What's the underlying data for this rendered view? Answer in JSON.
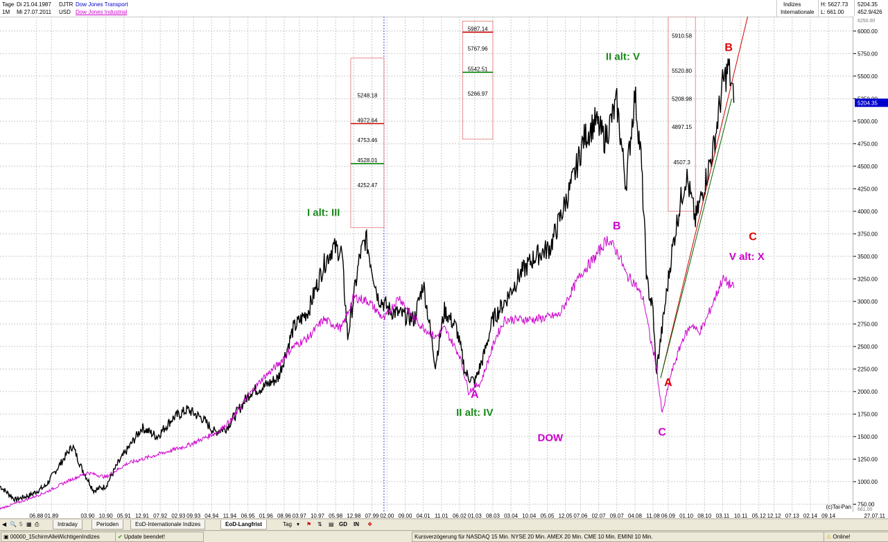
{
  "header": {
    "row1_mode": "Tage",
    "row1_date": "Di 21.04.1987",
    "row1_symbol": "DJTR",
    "row1_name": "Dow Jones Transport",
    "row2_mode": "1M",
    "row2_date": "Mi 27.07.2011",
    "row2_currency": "USD",
    "row2_name": "Dow Jones Industrial",
    "group1": "Indizes",
    "group2": "Internationale",
    "high": "H: 5627.73",
    "low": "L: 661.00",
    "last": "5204.35",
    "extra": "452.9/426"
  },
  "tabs": {
    "left_controls": [
      "5"
    ],
    "items": [
      {
        "label": "Intraday",
        "active": false
      },
      {
        "label": "Perioden",
        "active": false
      },
      {
        "label": "EoD-Internationale Indizes",
        "active": false
      },
      {
        "label": "EoD-Langfrist",
        "active": true
      }
    ],
    "tool_tag": "Tag",
    "tool_gd": "GD",
    "tool_in": "IN"
  },
  "status": {
    "workspace": "00000_15chirmAlleWichtigenIndizes",
    "update": "Update beendet!",
    "delay": "Kursverzögerung für NASDAQ 15 Min. NYSE 20 Min. AMEX 20 Min. CME 10 Min. EMINI 10 Min.",
    "online": "Online!"
  },
  "chart_data": {
    "type": "line",
    "title": "",
    "xlabel": "",
    "ylabel": "",
    "ylim": [
      661,
      6160
    ],
    "y_ticks": [
      750,
      1000,
      1250,
      1500,
      1750,
      2000,
      2250,
      2500,
      2750,
      3000,
      3250,
      3500,
      3750,
      4000,
      4250,
      4500,
      4750,
      5000,
      5250,
      5500,
      5750,
      6000
    ],
    "y_tick_labels": [
      "750.00",
      "1000.00",
      "1250.00",
      "1500.00",
      "1750.00",
      "2000.00",
      "2250.00",
      "2500.00",
      "2750.00",
      "3000.00",
      "3250.00",
      "3500.00",
      "3750.00",
      "4000.00",
      "4250.00",
      "4500.00",
      "4750.00",
      "5000.00",
      "5250.00",
      "5500.00",
      "5750.00",
      "6000.00"
    ],
    "y_top_label": "6250.00",
    "y_bottom_label": "661.00",
    "last_value": 5204.35,
    "last_label": "5204.35",
    "x_range": [
      1987.3,
      2015.5
    ],
    "x_ticks": [
      {
        "x": 1988.5,
        "label": "06.88"
      },
      {
        "x": 1989.0,
        "label": "01.89"
      },
      {
        "x": 1990.2,
        "label": "03.90"
      },
      {
        "x": 1990.8,
        "label": "10.90"
      },
      {
        "x": 1991.4,
        "label": "05.91"
      },
      {
        "x": 1992.0,
        "label": "12.91"
      },
      {
        "x": 1992.6,
        "label": "07.92"
      },
      {
        "x": 1993.2,
        "label": "02.93"
      },
      {
        "x": 1993.7,
        "label": "09.93"
      },
      {
        "x": 1994.3,
        "label": "04.94"
      },
      {
        "x": 1994.9,
        "label": "11.94"
      },
      {
        "x": 1995.5,
        "label": "06.95"
      },
      {
        "x": 1996.1,
        "label": "01.96"
      },
      {
        "x": 1996.7,
        "label": "08.96"
      },
      {
        "x": 1997.2,
        "label": "03.97"
      },
      {
        "x": 1997.8,
        "label": "10.97"
      },
      {
        "x": 1998.4,
        "label": "05.98"
      },
      {
        "x": 1999.0,
        "label": "12.98"
      },
      {
        "x": 1999.6,
        "label": "07.99"
      },
      {
        "x": 2000.1,
        "label": "02.00"
      },
      {
        "x": 2000.7,
        "label": "09.00"
      },
      {
        "x": 2001.3,
        "label": "04.01"
      },
      {
        "x": 2001.9,
        "label": "11.01"
      },
      {
        "x": 2002.5,
        "label": "06.02"
      },
      {
        "x": 2003.0,
        "label": "01.03"
      },
      {
        "x": 2003.6,
        "label": "08.03"
      },
      {
        "x": 2004.2,
        "label": "03.04"
      },
      {
        "x": 2004.8,
        "label": "10.04"
      },
      {
        "x": 2005.4,
        "label": "05.05"
      },
      {
        "x": 2006.0,
        "label": "12.05"
      },
      {
        "x": 2006.5,
        "label": "07.06"
      },
      {
        "x": 2007.1,
        "label": "02.07"
      },
      {
        "x": 2007.7,
        "label": "09.07"
      },
      {
        "x": 2008.3,
        "label": "04.08"
      },
      {
        "x": 2008.9,
        "label": "11.08"
      },
      {
        "x": 2009.4,
        "label": "06.09"
      },
      {
        "x": 2010.0,
        "label": "01.10"
      },
      {
        "x": 2010.6,
        "label": "08.10"
      },
      {
        "x": 2011.2,
        "label": "03.11"
      },
      {
        "x": 2011.8,
        "label": "10.11"
      },
      {
        "x": 2012.4,
        "label": "05.12"
      },
      {
        "x": 2012.9,
        "label": "12.12"
      },
      {
        "x": 2013.5,
        "label": "07.13"
      },
      {
        "x": 2014.1,
        "label": "02.14"
      },
      {
        "x": 2014.7,
        "label": "09.14"
      }
    ],
    "x_end_label": "27.07.11",
    "vline_x": 2000.0,
    "series": [
      {
        "name": "Dow Jones Transport",
        "color": "#000000",
        "x": [
          1987.3,
          1987.8,
          1988.3,
          1988.8,
          1989.3,
          1989.7,
          1990.0,
          1990.4,
          1990.8,
          1991.2,
          1991.6,
          1992.0,
          1992.5,
          1993.0,
          1993.5,
          1994.0,
          1994.4,
          1994.8,
          1995.2,
          1995.6,
          1996.0,
          1996.5,
          1997.0,
          1997.5,
          1998.0,
          1998.3,
          1998.6,
          1998.8,
          1999.2,
          1999.4,
          1999.8,
          2000.2,
          2000.6,
          2001.0,
          2001.3,
          2001.7,
          2002.0,
          2002.4,
          2002.7,
          2003.0,
          2003.3,
          2003.6,
          2004.0,
          2004.5,
          2005.0,
          2005.5,
          2006.0,
          2006.3,
          2006.6,
          2007.0,
          2007.3,
          2007.7,
          2008.0,
          2008.3,
          2008.5,
          2008.7,
          2008.9,
          2009.0,
          2009.2,
          2009.5,
          2009.8,
          2010.0,
          2010.3,
          2010.6,
          2010.9,
          2011.2,
          2011.4,
          2011.57
        ],
        "y": [
          950,
          800,
          850,
          950,
          1200,
          1400,
          1150,
          900,
          950,
          1200,
          1400,
          1600,
          1500,
          1700,
          1800,
          1700,
          1550,
          1600,
          1800,
          2000,
          2050,
          2150,
          2700,
          2900,
          3400,
          3600,
          3550,
          2600,
          3500,
          3700,
          3050,
          2900,
          2850,
          2800,
          3200,
          2300,
          2900,
          2700,
          2200,
          2100,
          2400,
          2800,
          3000,
          3300,
          3500,
          3600,
          4100,
          4400,
          4800,
          5000,
          4800,
          5200,
          4300,
          5300,
          4600,
          3200,
          2900,
          2200,
          2700,
          3500,
          4100,
          4400,
          3900,
          4300,
          4700,
          5400,
          5600,
          5204
        ]
      },
      {
        "name": "Dow Jones Industrial",
        "color": "#cc00cc",
        "x": [
          1987.3,
          1988.0,
          1988.8,
          1989.5,
          1990.2,
          1990.8,
          1991.5,
          1992.5,
          1993.5,
          1994.5,
          1995.0,
          1995.5,
          1996.0,
          1996.5,
          1997.0,
          1997.5,
          1998.0,
          1998.6,
          1999.0,
          1999.5,
          2000.0,
          2000.5,
          2001.0,
          2001.7,
          2002.0,
          2002.5,
          2002.8,
          2003.2,
          2003.7,
          2004.0,
          2005.0,
          2005.8,
          2006.5,
          2007.0,
          2007.4,
          2007.8,
          2008.0,
          2008.3,
          2008.6,
          2008.8,
          2009.0,
          2009.2,
          2009.5,
          2009.9,
          2010.2,
          2010.4,
          2010.6,
          2010.9,
          2011.2,
          2011.57
        ],
        "y": [
          700,
          780,
          880,
          1000,
          1100,
          1050,
          1200,
          1300,
          1400,
          1550,
          1700,
          1950,
          2150,
          2300,
          2500,
          2600,
          2800,
          2700,
          3050,
          3000,
          2800,
          3050,
          2800,
          2600,
          2700,
          2400,
          2000,
          2100,
          2600,
          2800,
          2800,
          2850,
          3300,
          3500,
          3700,
          3500,
          3300,
          3200,
          3000,
          2600,
          2300,
          1750,
          2200,
          2600,
          2750,
          2650,
          2750,
          3000,
          3250,
          3150
        ]
      }
    ],
    "trendlines": [
      {
        "color": "#cc0000",
        "x": [
          2009.15,
          2012.2
        ],
        "y": [
          2150,
          6400
        ]
      },
      {
        "color": "#006600",
        "x": [
          2009.15,
          2011.5
        ],
        "y": [
          2150,
          5250
        ]
      }
    ],
    "fib_boxes": [
      {
        "x0": 1998.9,
        "x1": 2000.0,
        "y0": 3820,
        "y1": 5700,
        "levels": [
          {
            "v": 5248.18,
            "label": "5248.18",
            "color": ""
          },
          {
            "v": 4972.64,
            "label": "4972.64",
            "color": "#cc0000"
          },
          {
            "v": 4753.46,
            "label": "4753.46",
            "color": ""
          },
          {
            "v": 4528.01,
            "label": "4528.01",
            "color": "#008000"
          },
          {
            "v": 4252.47,
            "label": "4252.47",
            "color": ""
          }
        ]
      },
      {
        "x0": 2002.6,
        "x1": 2003.6,
        "y0": 4800,
        "y1": 6110,
        "levels": [
          {
            "v": 5987.14,
            "label": "5987.14",
            "color": "#cc0000"
          },
          {
            "v": 5767.96,
            "label": "5767.96",
            "color": ""
          },
          {
            "v": 5542.51,
            "label": "5542.51",
            "color": "#008000"
          },
          {
            "v": 5266.97,
            "label": "5266.97",
            "color": ""
          }
        ]
      },
      {
        "x0": 2009.4,
        "x1": 2010.3,
        "y0": 4000,
        "y1": 6160,
        "levels": [
          {
            "v": 5910.58,
            "label": "5910.58",
            "color": ""
          },
          {
            "v": 5520.8,
            "label": "5520.80",
            "color": ""
          },
          {
            "v": 5208.98,
            "label": "5208.98",
            "color": ""
          },
          {
            "v": 4897.15,
            "label": "4897.15",
            "color": ""
          },
          {
            "v": 4507.3,
            "label": "4507.3",
            "color": ""
          }
        ]
      }
    ],
    "annotations": [
      {
        "text": "I alt: III",
        "x": 1998.0,
        "y": 3950,
        "color": "#1a8a1a"
      },
      {
        "text": "II alt: IV",
        "x": 2003.0,
        "y": 1730,
        "color": "#1a8a1a"
      },
      {
        "text": "A",
        "x": 2003.0,
        "y": 1930,
        "color": "#cc00cc"
      },
      {
        "text": "DOW",
        "x": 2005.5,
        "y": 1450,
        "color": "#cc00cc"
      },
      {
        "text": "II alt: V",
        "x": 2007.9,
        "y": 5680,
        "color": "#1a8a1a"
      },
      {
        "text": "B",
        "x": 2007.7,
        "y": 3800,
        "color": "#cc00cc"
      },
      {
        "text": "A",
        "x": 2009.4,
        "y": 2060,
        "color": "#dd0000"
      },
      {
        "text": "C",
        "x": 2009.2,
        "y": 1510,
        "color": "#cc00cc"
      },
      {
        "text": "B",
        "x": 2011.4,
        "y": 5780,
        "color": "#dd0000"
      },
      {
        "text": "C",
        "x": 2012.2,
        "y": 3680,
        "color": "#dd0000"
      },
      {
        "text": "V alt: X",
        "x": 2012.0,
        "y": 3460,
        "color": "#cc00cc"
      }
    ],
    "watermark": "(c)Tai-Pan",
    "grid": true,
    "legend": "top-left"
  }
}
